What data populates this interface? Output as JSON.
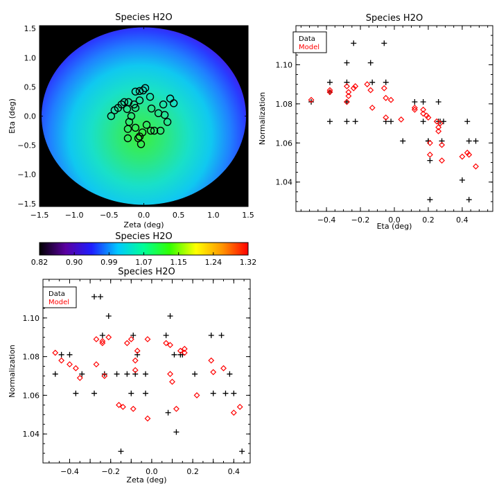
{
  "chart_data": [
    {
      "id": "map",
      "type": "heatmap",
      "title": "Species H2O",
      "xlabel": "Zeta (deg)",
      "ylabel": "Eta (deg)",
      "xlim": [
        -1.5,
        1.5
      ],
      "ylim": [
        -1.55,
        1.55
      ],
      "xticks": [
        "−1.5",
        "−1.0",
        "−0.5",
        "0.0",
        "0.5",
        "1.0",
        "1.5"
      ],
      "yticks": [
        "1.5",
        "1.0",
        "0.5",
        "0.0",
        "−0.5",
        "−1.0",
        "−1.5"
      ],
      "colormap": "rainbow",
      "background": "#000000",
      "ellipse_center": [
        0.0,
        0.0
      ],
      "ellipse_radii": [
        1.47,
        1.52
      ],
      "gradient_center": [
        -0.05,
        -0.35
      ],
      "markers": {
        "shape": "circle",
        "points": [
          [
            -0.47,
            0.0
          ],
          [
            -0.42,
            0.1
          ],
          [
            -0.37,
            0.14
          ],
          [
            -0.32,
            0.2
          ],
          [
            -0.28,
            0.24
          ],
          [
            -0.22,
            0.24
          ],
          [
            -0.24,
            0.12
          ],
          [
            -0.12,
            0.42
          ],
          [
            -0.06,
            0.43
          ],
          [
            -0.01,
            0.44
          ],
          [
            0.02,
            0.48
          ],
          [
            -0.14,
            0.2
          ],
          [
            -0.06,
            0.27
          ],
          [
            -0.12,
            0.14
          ],
          [
            0.09,
            0.33
          ],
          [
            0.11,
            0.13
          ],
          [
            0.28,
            0.2
          ],
          [
            0.38,
            0.3
          ],
          [
            0.43,
            0.22
          ],
          [
            0.21,
            0.05
          ],
          [
            0.3,
            0.02
          ],
          [
            0.34,
            -0.1
          ],
          [
            0.24,
            -0.25
          ],
          [
            0.15,
            -0.25
          ],
          [
            0.1,
            -0.25
          ],
          [
            0.04,
            -0.15
          ],
          [
            -0.02,
            -0.28
          ],
          [
            -0.06,
            -0.35
          ],
          [
            -0.12,
            -0.2
          ],
          [
            -0.21,
            -0.1
          ],
          [
            -0.23,
            -0.22
          ],
          [
            -0.23,
            -0.38
          ],
          [
            -0.08,
            -0.38
          ],
          [
            -0.04,
            -0.48
          ],
          [
            -0.18,
            0.0
          ]
        ]
      }
    },
    {
      "id": "colorbar",
      "type": "colorbar",
      "title": "Species H2O",
      "ticks": [
        "0.82",
        "0.90",
        "0.99",
        "1.07",
        "1.15",
        "1.24",
        "1.32"
      ],
      "range": [
        0.82,
        1.32
      ],
      "colors": [
        "#000000",
        "#5a00a0",
        "#1e1eff",
        "#00c8ff",
        "#00ff96",
        "#32ff00",
        "#ffff00",
        "#ff9600",
        "#ff0000"
      ]
    },
    {
      "id": "eta",
      "type": "scatter",
      "title": "Species H2O",
      "xlabel": "Eta (deg)",
      "ylabel": "Normalization",
      "xlim": [
        -0.58,
        0.58
      ],
      "ylim": [
        1.025,
        1.12
      ],
      "xticks": [
        -0.4,
        -0.2,
        0.0,
        0.2,
        0.4
      ],
      "yticks": [
        1.04,
        1.06,
        1.08,
        1.1
      ],
      "legend": {
        "placement": "top-left",
        "entries": [
          {
            "name": "Data",
            "color": "#000000"
          },
          {
            "name": "Model",
            "color": "#ff0000"
          }
        ]
      },
      "series": [
        {
          "name": "Data",
          "color": "#000000",
          "marker": "plus",
          "points": [
            [
              -0.49,
              1.081
            ],
            [
              -0.38,
              1.091
            ],
            [
              -0.38,
              1.086
            ],
            [
              -0.38,
              1.071
            ],
            [
              -0.28,
              1.101
            ],
            [
              -0.28,
              1.091
            ],
            [
              -0.28,
              1.081
            ],
            [
              -0.28,
              1.071
            ],
            [
              -0.24,
              1.111
            ],
            [
              -0.23,
              1.071
            ],
            [
              -0.13,
              1.091
            ],
            [
              -0.14,
              1.101
            ],
            [
              -0.06,
              1.111
            ],
            [
              -0.05,
              1.091
            ],
            [
              -0.05,
              1.071
            ],
            [
              -0.02,
              1.071
            ],
            [
              0.05,
              1.061
            ],
            [
              0.12,
              1.081
            ],
            [
              0.17,
              1.081
            ],
            [
              0.17,
              1.071
            ],
            [
              0.2,
              1.061
            ],
            [
              0.2,
              1.061
            ],
            [
              0.21,
              1.051
            ],
            [
              0.21,
              1.031
            ],
            [
              0.26,
              1.081
            ],
            [
              0.26,
              1.071
            ],
            [
              0.27,
              1.071
            ],
            [
              0.29,
              1.071
            ],
            [
              0.28,
              1.061
            ],
            [
              0.4,
              1.041
            ],
            [
              0.43,
              1.071
            ],
            [
              0.44,
              1.061
            ],
            [
              0.44,
              1.031
            ],
            [
              0.48,
              1.061
            ]
          ]
        },
        {
          "name": "Model",
          "color": "#ff0000",
          "marker": "diamond",
          "points": [
            [
              -0.49,
              1.082
            ],
            [
              -0.38,
              1.087
            ],
            [
              -0.38,
              1.086
            ],
            [
              -0.28,
              1.089
            ],
            [
              -0.27,
              1.086
            ],
            [
              -0.27,
              1.084
            ],
            [
              -0.28,
              1.081
            ],
            [
              -0.24,
              1.088
            ],
            [
              -0.23,
              1.089
            ],
            [
              -0.16,
              1.09
            ],
            [
              -0.14,
              1.087
            ],
            [
              -0.13,
              1.078
            ],
            [
              -0.06,
              1.088
            ],
            [
              -0.05,
              1.083
            ],
            [
              -0.05,
              1.073
            ],
            [
              -0.02,
              1.082
            ],
            [
              0.04,
              1.072
            ],
            [
              0.12,
              1.078
            ],
            [
              0.12,
              1.077
            ],
            [
              0.17,
              1.077
            ],
            [
              0.17,
              1.075
            ],
            [
              0.19,
              1.074
            ],
            [
              0.2,
              1.073
            ],
            [
              0.21,
              1.06
            ],
            [
              0.21,
              1.054
            ],
            [
              0.25,
              1.071
            ],
            [
              0.26,
              1.068
            ],
            [
              0.26,
              1.066
            ],
            [
              0.27,
              1.07
            ],
            [
              0.28,
              1.059
            ],
            [
              0.28,
              1.051
            ],
            [
              0.4,
              1.053
            ],
            [
              0.43,
              1.055
            ],
            [
              0.44,
              1.054
            ],
            [
              0.48,
              1.048
            ]
          ]
        }
      ]
    },
    {
      "id": "zeta",
      "type": "scatter",
      "title": "Species H2O",
      "xlabel": "Zeta (deg)",
      "ylabel": "Normalization",
      "xlim": [
        -0.53,
        0.48
      ],
      "ylim": [
        1.025,
        1.12
      ],
      "xticks": [
        -0.4,
        -0.3,
        -0.2,
        -0.1,
        0.0,
        0.1,
        0.2,
        0.3,
        0.4
      ],
      "xtick_labels": [
        "−0.4",
        "",
        "−0.2",
        "",
        "0.0",
        "",
        "0.2",
        "",
        "0.4"
      ],
      "yticks": [
        1.04,
        1.06,
        1.08,
        1.1
      ],
      "legend": {
        "placement": "top-left",
        "entries": [
          {
            "name": "Data",
            "color": "#000000"
          },
          {
            "name": "Model",
            "color": "#ff0000"
          }
        ]
      },
      "series": [
        {
          "name": "Data",
          "color": "#000000",
          "marker": "plus",
          "points": [
            [
              -0.47,
              1.071
            ],
            [
              -0.44,
              1.081
            ],
            [
              -0.4,
              1.081
            ],
            [
              -0.37,
              1.061
            ],
            [
              -0.34,
              1.071
            ],
            [
              -0.28,
              1.111
            ],
            [
              -0.25,
              1.111
            ],
            [
              -0.24,
              1.091
            ],
            [
              -0.23,
              1.071
            ],
            [
              -0.21,
              1.101
            ],
            [
              -0.28,
              1.061
            ],
            [
              -0.17,
              1.071
            ],
            [
              -0.15,
              1.031
            ],
            [
              -0.12,
              1.071
            ],
            [
              -0.1,
              1.061
            ],
            [
              -0.09,
              1.091
            ],
            [
              -0.08,
              1.071
            ],
            [
              -0.07,
              1.081
            ],
            [
              -0.03,
              1.071
            ],
            [
              -0.03,
              1.061
            ],
            [
              0.07,
              1.091
            ],
            [
              0.08,
              1.051
            ],
            [
              0.09,
              1.101
            ],
            [
              0.11,
              1.081
            ],
            [
              0.12,
              1.041
            ],
            [
              0.14,
              1.081
            ],
            [
              0.15,
              1.081
            ],
            [
              0.21,
              1.071
            ],
            [
              0.29,
              1.091
            ],
            [
              0.3,
              1.061
            ],
            [
              0.34,
              1.091
            ],
            [
              0.36,
              1.061
            ],
            [
              0.38,
              1.071
            ],
            [
              0.4,
              1.061
            ],
            [
              0.44,
              1.031
            ]
          ]
        },
        {
          "name": "Model",
          "color": "#ff0000",
          "marker": "diamond",
          "points": [
            [
              -0.47,
              1.082
            ],
            [
              -0.44,
              1.078
            ],
            [
              -0.4,
              1.076
            ],
            [
              -0.37,
              1.074
            ],
            [
              -0.35,
              1.069
            ],
            [
              -0.27,
              1.089
            ],
            [
              -0.24,
              1.088
            ],
            [
              -0.24,
              1.087
            ],
            [
              -0.21,
              1.09
            ],
            [
              -0.27,
              1.076
            ],
            [
              -0.23,
              1.07
            ],
            [
              -0.16,
              1.055
            ],
            [
              -0.14,
              1.054
            ],
            [
              -0.12,
              1.087
            ],
            [
              -0.1,
              1.089
            ],
            [
              -0.08,
              1.078
            ],
            [
              -0.07,
              1.083
            ],
            [
              -0.08,
              1.073
            ],
            [
              -0.09,
              1.053
            ],
            [
              -0.02,
              1.089
            ],
            [
              -0.02,
              1.048
            ],
            [
              0.07,
              1.087
            ],
            [
              0.09,
              1.086
            ],
            [
              0.09,
              1.071
            ],
            [
              0.1,
              1.067
            ],
            [
              0.12,
              1.053
            ],
            [
              0.14,
              1.083
            ],
            [
              0.16,
              1.084
            ],
            [
              0.16,
              1.082
            ],
            [
              0.22,
              1.06
            ],
            [
              0.29,
              1.078
            ],
            [
              0.3,
              1.072
            ],
            [
              0.35,
              1.074
            ],
            [
              0.4,
              1.051
            ],
            [
              0.43,
              1.054
            ]
          ]
        }
      ]
    }
  ]
}
